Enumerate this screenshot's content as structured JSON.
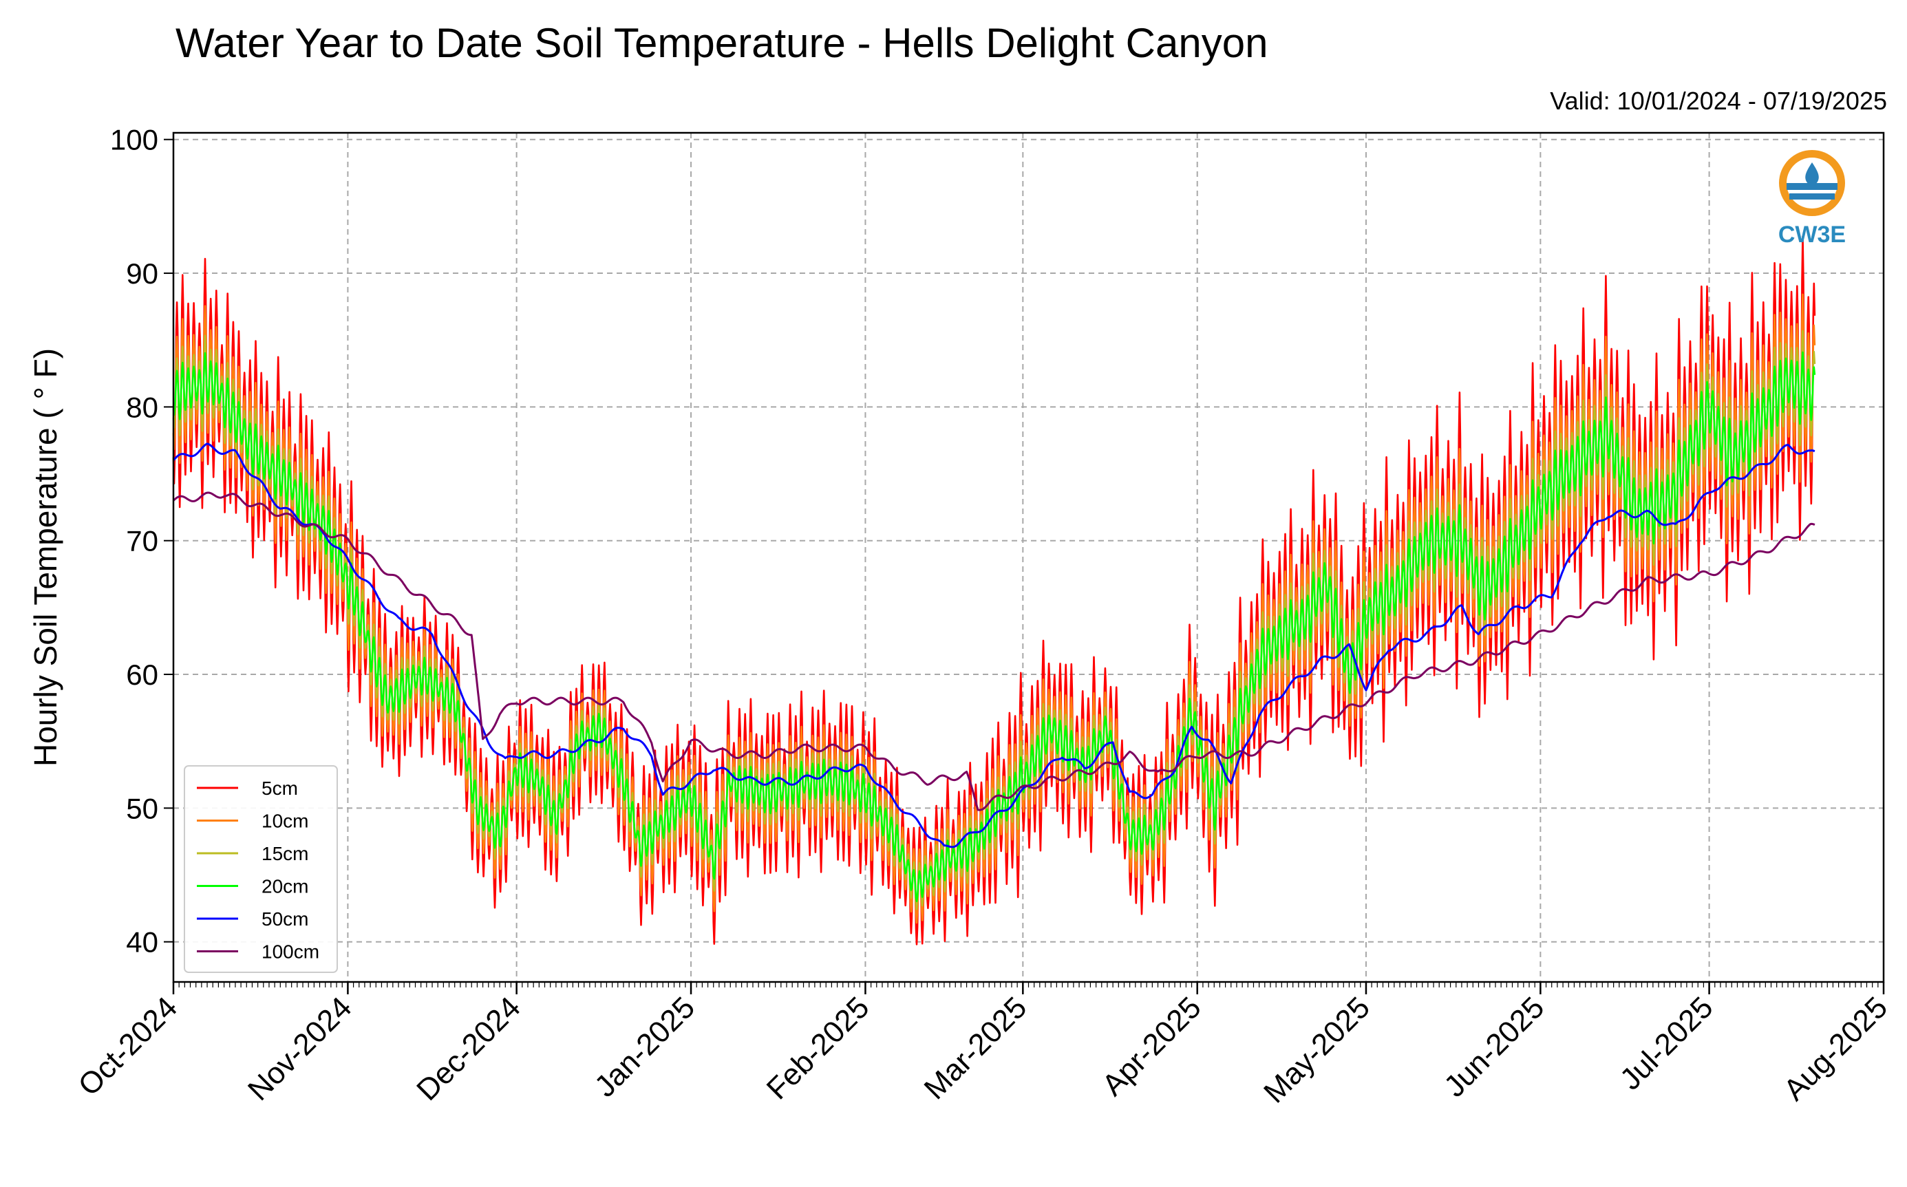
{
  "chart_data": {
    "type": "line",
    "title": "Water Year to Date Soil Temperature - Hells Delight Canyon",
    "subtitle": "Valid: 10/01/2024 - 07/19/2025",
    "ylabel": "Hourly Soil Temperature ( ° F)",
    "xlabel": "",
    "ylim": [
      37,
      100.5
    ],
    "yticks": [
      40,
      50,
      60,
      70,
      80,
      90,
      100
    ],
    "xlim": [
      "2024-10-01",
      "2025-08-01"
    ],
    "xticks": [
      {
        "date": "2024-10-01",
        "label": "Oct-2024"
      },
      {
        "date": "2024-11-01",
        "label": "Nov-2024"
      },
      {
        "date": "2024-12-01",
        "label": "Dec-2024"
      },
      {
        "date": "2025-01-01",
        "label": "Jan-2025"
      },
      {
        "date": "2025-02-01",
        "label": "Feb-2025"
      },
      {
        "date": "2025-03-01",
        "label": "Mar-2025"
      },
      {
        "date": "2025-04-01",
        "label": "Apr-2025"
      },
      {
        "date": "2025-05-01",
        "label": "May-2025"
      },
      {
        "date": "2025-06-01",
        "label": "Jun-2025"
      },
      {
        "date": "2025-07-01",
        "label": "Jul-2025"
      },
      {
        "date": "2025-08-01",
        "label": "Aug-2025"
      }
    ],
    "grid": true,
    "legend_position": "lower-left",
    "logo_text": "CW3E",
    "series": [
      {
        "name": "5cm",
        "color": "#ff0000",
        "amp_scale": 1.0,
        "offset": 0,
        "mean": [
          [
            "2024-10-01",
            81
          ],
          [
            "2024-10-08",
            82
          ],
          [
            "2024-10-15",
            77
          ],
          [
            "2024-10-22",
            74
          ],
          [
            "2024-10-28",
            71
          ],
          [
            "2024-11-02",
            66
          ],
          [
            "2024-11-08",
            58
          ],
          [
            "2024-11-14",
            60
          ],
          [
            "2024-11-20",
            58
          ],
          [
            "2024-11-24",
            50
          ],
          [
            "2024-11-28",
            48
          ],
          [
            "2024-12-01",
            53
          ],
          [
            "2024-12-05",
            52
          ],
          [
            "2024-12-08",
            49
          ],
          [
            "2024-12-12",
            55
          ],
          [
            "2024-12-16",
            56
          ],
          [
            "2024-12-20",
            52
          ],
          [
            "2024-12-23",
            47
          ],
          [
            "2024-12-27",
            49
          ],
          [
            "2025-01-01",
            51
          ],
          [
            "2025-01-05",
            46
          ],
          [
            "2025-01-08",
            52
          ],
          [
            "2025-01-15",
            51
          ],
          [
            "2025-01-22",
            52
          ],
          [
            "2025-01-28",
            52
          ],
          [
            "2025-02-01",
            51
          ],
          [
            "2025-02-06",
            48
          ],
          [
            "2025-02-10",
            44
          ],
          [
            "2025-02-15",
            46
          ],
          [
            "2025-02-20",
            47
          ],
          [
            "2025-02-25",
            50
          ],
          [
            "2025-03-01",
            52
          ],
          [
            "2025-03-06",
            56
          ],
          [
            "2025-03-12",
            53
          ],
          [
            "2025-03-16",
            56
          ],
          [
            "2025-03-20",
            48
          ],
          [
            "2025-03-24",
            48
          ],
          [
            "2025-03-27",
            51
          ],
          [
            "2025-03-31",
            57
          ],
          [
            "2025-04-04",
            50
          ],
          [
            "2025-04-08",
            56
          ],
          [
            "2025-04-12",
            61
          ],
          [
            "2025-04-16",
            63
          ],
          [
            "2025-04-20",
            64
          ],
          [
            "2025-04-24",
            67
          ],
          [
            "2025-04-28",
            60
          ],
          [
            "2025-05-02",
            65
          ],
          [
            "2025-05-06",
            66
          ],
          [
            "2025-05-12",
            70
          ],
          [
            "2025-05-18",
            70
          ],
          [
            "2025-05-22",
            66
          ],
          [
            "2025-05-28",
            70
          ],
          [
            "2025-06-03",
            74
          ],
          [
            "2025-06-08",
            76
          ],
          [
            "2025-06-13",
            78
          ],
          [
            "2025-06-18",
            72
          ],
          [
            "2025-06-24",
            73
          ],
          [
            "2025-07-01",
            80
          ],
          [
            "2025-07-05",
            76
          ],
          [
            "2025-07-10",
            79
          ],
          [
            "2025-07-15",
            82
          ],
          [
            "2025-07-19",
            81
          ]
        ],
        "amp": [
          [
            "2024-10-01",
            9
          ],
          [
            "2024-11-01",
            8
          ],
          [
            "2024-11-15",
            6
          ],
          [
            "2024-12-01",
            6
          ],
          [
            "2024-12-20",
            6
          ],
          [
            "2025-01-05",
            7
          ],
          [
            "2025-02-01",
            7
          ],
          [
            "2025-02-10",
            5
          ],
          [
            "2025-03-01",
            8
          ],
          [
            "2025-03-20",
            6
          ],
          [
            "2025-04-15",
            9
          ],
          [
            "2025-05-15",
            10
          ],
          [
            "2025-06-15",
            11
          ],
          [
            "2025-07-19",
            11
          ]
        ]
      },
      {
        "name": "10cm",
        "color": "#ff7f0e",
        "amp_scale": 0.62,
        "offset": 0,
        "mean": [],
        "amp": []
      },
      {
        "name": "15cm",
        "color": "#bcbd22",
        "amp_scale": 0.38,
        "offset": 0,
        "mean": [],
        "amp": []
      },
      {
        "name": "20cm",
        "color": "#00ff00",
        "amp_scale": 0.24,
        "offset": 0,
        "mean": [],
        "amp": []
      },
      {
        "name": "50cm",
        "color": "#0000ff",
        "amp_scale": 0,
        "offset": 0,
        "mean": [
          [
            "2024-10-01",
            76
          ],
          [
            "2024-10-07",
            77
          ],
          [
            "2024-10-12",
            76.5
          ],
          [
            "2024-10-20",
            72.5
          ],
          [
            "2024-10-28",
            70.5
          ],
          [
            "2024-11-04",
            67
          ],
          [
            "2024-11-10",
            64
          ],
          [
            "2024-11-16",
            63
          ],
          [
            "2024-11-22",
            58
          ],
          [
            "2024-11-26",
            55
          ],
          [
            "2024-11-29",
            53.5
          ],
          [
            "2024-12-01",
            54
          ],
          [
            "2024-12-08",
            54
          ],
          [
            "2024-12-15",
            55
          ],
          [
            "2024-12-20",
            56
          ],
          [
            "2024-12-25",
            54
          ],
          [
            "2024-12-27",
            51
          ],
          [
            "2025-01-01",
            52
          ],
          [
            "2025-01-05",
            53
          ],
          [
            "2025-01-12",
            52
          ],
          [
            "2025-01-20",
            52
          ],
          [
            "2025-01-28",
            53
          ],
          [
            "2025-02-01",
            53
          ],
          [
            "2025-02-05",
            51
          ],
          [
            "2025-02-10",
            49
          ],
          [
            "2025-02-15",
            47
          ],
          [
            "2025-02-20",
            48
          ],
          [
            "2025-02-26",
            50
          ],
          [
            "2025-03-03",
            52
          ],
          [
            "2025-03-08",
            54
          ],
          [
            "2025-03-12",
            53
          ],
          [
            "2025-03-17",
            55
          ],
          [
            "2025-03-20",
            51
          ],
          [
            "2025-03-24",
            51
          ],
          [
            "2025-03-28",
            53
          ],
          [
            "2025-03-31",
            56
          ],
          [
            "2025-04-03",
            55
          ],
          [
            "2025-04-07",
            52
          ],
          [
            "2025-04-12",
            57
          ],
          [
            "2025-04-17",
            59
          ],
          [
            "2025-04-23",
            61
          ],
          [
            "2025-04-28",
            62
          ],
          [
            "2025-05-01",
            59
          ],
          [
            "2025-05-05",
            62
          ],
          [
            "2025-05-12",
            63
          ],
          [
            "2025-05-18",
            65
          ],
          [
            "2025-05-21",
            63
          ],
          [
            "2025-05-28",
            65
          ],
          [
            "2025-06-03",
            66
          ],
          [
            "2025-06-08",
            70
          ],
          [
            "2025-06-13",
            72
          ],
          [
            "2025-06-20",
            72
          ],
          [
            "2025-06-25",
            71
          ],
          [
            "2025-07-02",
            74
          ],
          [
            "2025-07-05",
            74.5
          ],
          [
            "2025-07-10",
            75.5
          ],
          [
            "2025-07-15",
            77
          ],
          [
            "2025-07-19",
            76.5
          ]
        ],
        "amp": []
      },
      {
        "name": "100cm",
        "color": "#7b0060",
        "amp_scale": 0,
        "offset": 0,
        "mean": [
          [
            "2024-10-01",
            73
          ],
          [
            "2024-10-10",
            73.5
          ],
          [
            "2024-10-20",
            72
          ],
          [
            "2024-11-01",
            70
          ],
          [
            "2024-11-10",
            67
          ],
          [
            "2024-11-20",
            64
          ],
          [
            "2024-11-23",
            63
          ],
          [
            "2024-11-25",
            55
          ],
          [
            "2024-11-28",
            57
          ],
          [
            "2024-12-01",
            58
          ],
          [
            "2024-12-10",
            58
          ],
          [
            "2024-12-20",
            58
          ],
          [
            "2024-12-25",
            55
          ],
          [
            "2024-12-27",
            52
          ],
          [
            "2025-01-01",
            55
          ],
          [
            "2025-01-08",
            54
          ],
          [
            "2025-01-15",
            54
          ],
          [
            "2025-01-20",
            54.5
          ],
          [
            "2025-02-01",
            54.5
          ],
          [
            "2025-02-06",
            53
          ],
          [
            "2025-02-12",
            52
          ],
          [
            "2025-02-19",
            52.5
          ],
          [
            "2025-02-21",
            50
          ],
          [
            "2025-02-25",
            50.8
          ],
          [
            "2025-03-05",
            52
          ],
          [
            "2025-03-15",
            53
          ],
          [
            "2025-03-20",
            54
          ],
          [
            "2025-03-25",
            52.5
          ],
          [
            "2025-04-01",
            54
          ],
          [
            "2025-04-10",
            54
          ],
          [
            "2025-04-20",
            56
          ],
          [
            "2025-05-01",
            58
          ],
          [
            "2025-05-10",
            60
          ],
          [
            "2025-05-20",
            61
          ],
          [
            "2025-06-01",
            63
          ],
          [
            "2025-06-10",
            65
          ],
          [
            "2025-06-20",
            67
          ],
          [
            "2025-07-01",
            67.5
          ],
          [
            "2025-07-10",
            69
          ],
          [
            "2025-07-19",
            71
          ]
        ],
        "amp": []
      }
    ]
  }
}
